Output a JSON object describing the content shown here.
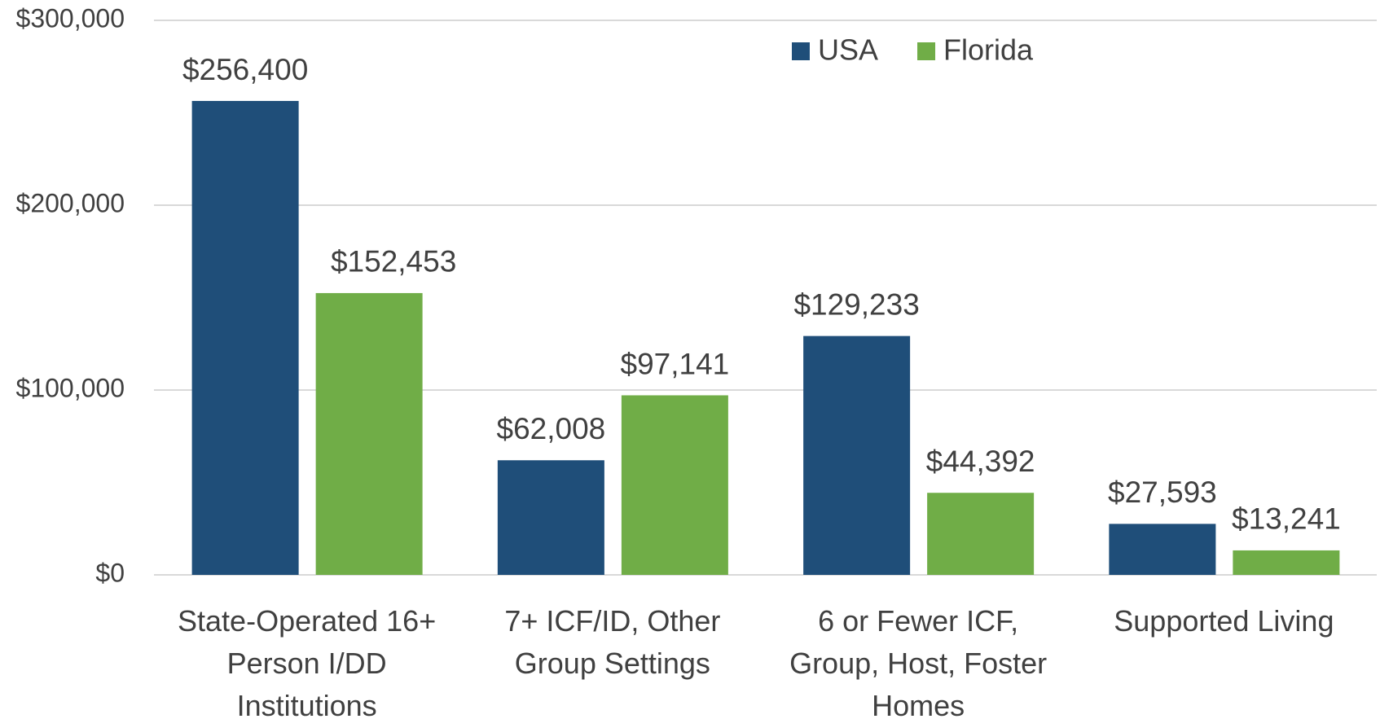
{
  "chart_data": {
    "type": "bar",
    "categories": [
      "State-Operated 16+ Person I/DD Institutions",
      "7+ ICF/ID, Other Group Settings",
      "6 or Fewer ICF, Group, Host, Foster Homes",
      "Supported Living"
    ],
    "series": [
      {
        "name": "USA",
        "color": "#1f4e79",
        "values": [
          256400,
          62008,
          129233,
          27593
        ],
        "value_labels": [
          "$256,400",
          "$62,008",
          "$129,233",
          "$27,593"
        ]
      },
      {
        "name": "Florida",
        "color": "#70ad47",
        "values": [
          152453,
          97141,
          44392,
          13241
        ],
        "value_labels": [
          "$152,453",
          "$97,141",
          "$44,392",
          "$13,241"
        ]
      }
    ],
    "ylim": [
      0,
      300000
    ],
    "yticks": [
      {
        "value": 0,
        "label": "$0"
      },
      {
        "value": 100000,
        "label": "$100,000"
      },
      {
        "value": 200000,
        "label": "$200,000"
      },
      {
        "value": 300000,
        "label": "$300,000"
      }
    ],
    "grid": true,
    "legend": "top"
  }
}
